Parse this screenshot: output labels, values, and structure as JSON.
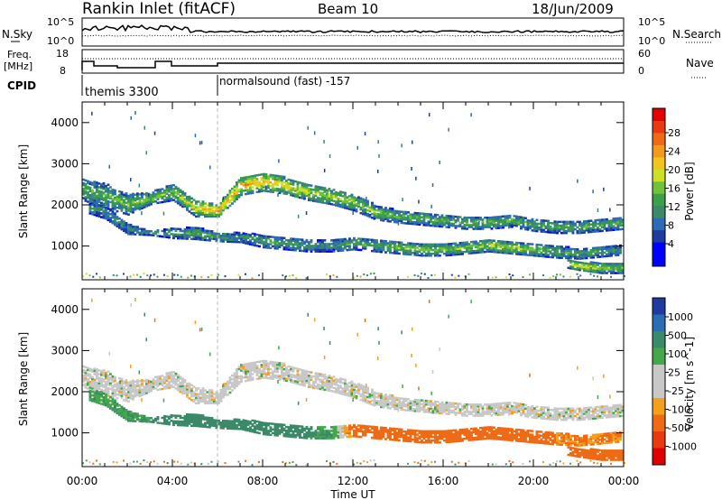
{
  "header": {
    "station": "Rankin Inlet (fitACF)",
    "beam": "Beam 10",
    "date": "18/Jun/2009"
  },
  "top_panels": {
    "nsky_label": "N.Sky",
    "nsky_ticks": [
      "10^5",
      "10^0"
    ],
    "nsearch_label": "N.Search",
    "nsearch_ticks": [
      "10^5",
      "10^0"
    ],
    "freq_label_1": "Freq.",
    "freq_label_2": "[MHz]",
    "freq_ticks": [
      "18",
      "8"
    ],
    "nave_label": "Nave",
    "nave_ticks": [
      "60",
      "0"
    ],
    "cpid_label": "CPID",
    "cpid_1": "normalsound (fast)  -157",
    "cpid_2": "themis 3300"
  },
  "colors": {
    "power_scale": [
      "#0000ff",
      "#0000ff",
      "#1e3ca0",
      "#2b6cb4",
      "#3a8a6a",
      "#3aa04a",
      "#6fc23a",
      "#cde028",
      "#f2c41e",
      "#f29a1e",
      "#ee6a14",
      "#e83a10",
      "#e00000"
    ],
    "velocity_scale": [
      "#1e3ca0",
      "#2b6cb4",
      "#3a8a6a",
      "#44a84a",
      "#c8c8c8",
      "#c8c8c8",
      "#f2a01e",
      "#ee6a14",
      "#e83a10",
      "#e00000"
    ]
  },
  "chart_data": [
    {
      "type": "heatmap",
      "name": "power",
      "xlabel": "",
      "ylabel": "Slant Range [km]",
      "x_ticks": [
        "00:00",
        "04:00",
        "08:00",
        "12:00",
        "16:00",
        "20:00",
        "00:00"
      ],
      "xlim": [
        0,
        24
      ],
      "y_ticks": [
        1000,
        2000,
        3000,
        4000
      ],
      "ylim": [
        180,
        4500
      ],
      "colorbar": {
        "label": "Power [dB]",
        "ticks": [
          "28",
          "24",
          "20",
          "16",
          "12",
          "8",
          "4"
        ],
        "range": [
          0,
          32
        ]
      },
      "echo_bands": [
        {
          "t": [
            0,
            1,
            2,
            3,
            4,
            5,
            6,
            7,
            8,
            9,
            10,
            11,
            12,
            13,
            14,
            15,
            16,
            17,
            18,
            19,
            20,
            21,
            22,
            23,
            24
          ],
          "center": [
            2350,
            2200,
            2000,
            2150,
            2300,
            1900,
            1850,
            2450,
            2550,
            2450,
            2300,
            2200,
            2050,
            1800,
            1700,
            1650,
            1600,
            1550,
            1550,
            1600,
            1500,
            1450,
            1450,
            1500,
            1550
          ],
          "width": [
            500,
            600,
            500,
            300,
            400,
            400,
            300,
            450,
            450,
            400,
            400,
            400,
            400,
            350,
            300,
            300,
            300,
            300,
            300,
            300,
            300,
            300,
            300,
            300,
            300
          ],
          "power": [
            12,
            12,
            14,
            14,
            14,
            18,
            22,
            20,
            20,
            18,
            16,
            16,
            15,
            14,
            13,
            13,
            13,
            13,
            13,
            13,
            12,
            12,
            12,
            12,
            12
          ]
        },
        {
          "t": [
            0.3,
            1,
            2,
            3,
            4,
            5,
            6,
            7,
            8,
            9,
            10,
            11,
            12,
            13,
            14,
            15,
            16,
            17,
            18,
            19,
            20,
            21,
            22,
            23,
            23.9
          ],
          "center": [
            1900,
            1800,
            1400,
            1300,
            1300,
            1300,
            1200,
            1200,
            1100,
            1050,
            1000,
            1000,
            1050,
            1000,
            950,
            900,
            900,
            950,
            1000,
            950,
            900,
            850,
            800,
            850,
            900
          ],
          "width": [
            250,
            300,
            250,
            100,
            250,
            300,
            200,
            250,
            300,
            300,
            300,
            300,
            300,
            300,
            300,
            300,
            300,
            300,
            300,
            300,
            300,
            300,
            250,
            250,
            250
          ],
          "power": [
            10,
            10,
            10,
            10,
            12,
            12,
            12,
            10,
            12,
            12,
            10,
            10,
            12,
            12,
            14,
            14,
            14,
            14,
            16,
            16,
            14,
            12,
            12,
            12,
            10
          ]
        },
        {
          "t": [
            21.5,
            22,
            23,
            24
          ],
          "center": [
            550,
            500,
            450,
            450
          ],
          "width": [
            200,
            200,
            250,
            250
          ],
          "power": [
            18,
            18,
            16,
            14
          ]
        }
      ]
    },
    {
      "type": "heatmap",
      "name": "velocity",
      "xlabel": "Time UT",
      "ylabel": "Slant Range [km]",
      "x_ticks": [
        "00:00",
        "04:00",
        "08:00",
        "12:00",
        "16:00",
        "20:00",
        "00:00"
      ],
      "xlim": [
        0,
        24
      ],
      "y_ticks": [
        1000,
        2000,
        3000,
        4000
      ],
      "ylim": [
        180,
        4500
      ],
      "colorbar": {
        "label": "Velocity [m s^-1]",
        "ticks": [
          "1000",
          "500",
          "100",
          "25",
          "-25",
          "-100",
          "-500",
          "-1000"
        ],
        "range": [
          -1000,
          1000
        ]
      },
      "echo_bands": [
        {
          "t": [
            0,
            1,
            2,
            3,
            4,
            5,
            6,
            7,
            8,
            9,
            10,
            11,
            12,
            13,
            14,
            15,
            16,
            17,
            18,
            19,
            20,
            21,
            22,
            23,
            24
          ],
          "center": [
            2350,
            2200,
            2000,
            2150,
            2300,
            1900,
            1850,
            2450,
            2550,
            2450,
            2300,
            2200,
            2050,
            1800,
            1700,
            1650,
            1600,
            1550,
            1550,
            1600,
            1500,
            1450,
            1450,
            1500,
            1550
          ],
          "width": [
            500,
            600,
            500,
            300,
            400,
            400,
            300,
            450,
            450,
            400,
            400,
            400,
            400,
            350,
            300,
            300,
            300,
            300,
            300,
            300,
            300,
            300,
            300,
            300,
            300
          ],
          "velocity": [
            0,
            0,
            0,
            0,
            0,
            0,
            0,
            0,
            0,
            0,
            0,
            0,
            0,
            0,
            0,
            0,
            0,
            0,
            0,
            0,
            0,
            0,
            0,
            0,
            0
          ]
        },
        {
          "t": [
            0.3,
            1,
            2,
            3,
            4,
            5,
            6,
            7,
            8,
            9,
            10,
            11,
            12,
            13,
            14,
            15,
            16,
            17,
            18,
            19,
            20,
            21,
            22,
            23,
            23.9
          ],
          "center": [
            1900,
            1800,
            1400,
            1300,
            1300,
            1300,
            1200,
            1200,
            1100,
            1050,
            1000,
            1000,
            1050,
            1000,
            950,
            900,
            900,
            950,
            1000,
            950,
            900,
            850,
            800,
            850,
            900
          ],
          "width": [
            250,
            300,
            250,
            100,
            250,
            300,
            200,
            250,
            300,
            300,
            300,
            300,
            300,
            300,
            300,
            300,
            300,
            300,
            300,
            300,
            300,
            300,
            250,
            250,
            250
          ],
          "velocity": [
            80,
            80,
            100,
            100,
            150,
            150,
            150,
            150,
            150,
            150,
            120,
            100,
            -150,
            -200,
            -200,
            -300,
            -300,
            -300,
            -300,
            -200,
            -200,
            -100,
            -100,
            -100,
            -100
          ]
        },
        {
          "t": [
            21.5,
            22,
            23,
            24
          ],
          "center": [
            550,
            500,
            450,
            450
          ],
          "width": [
            200,
            200,
            250,
            250
          ],
          "velocity": [
            -400,
            -400,
            -400,
            -400
          ]
        }
      ]
    }
  ]
}
